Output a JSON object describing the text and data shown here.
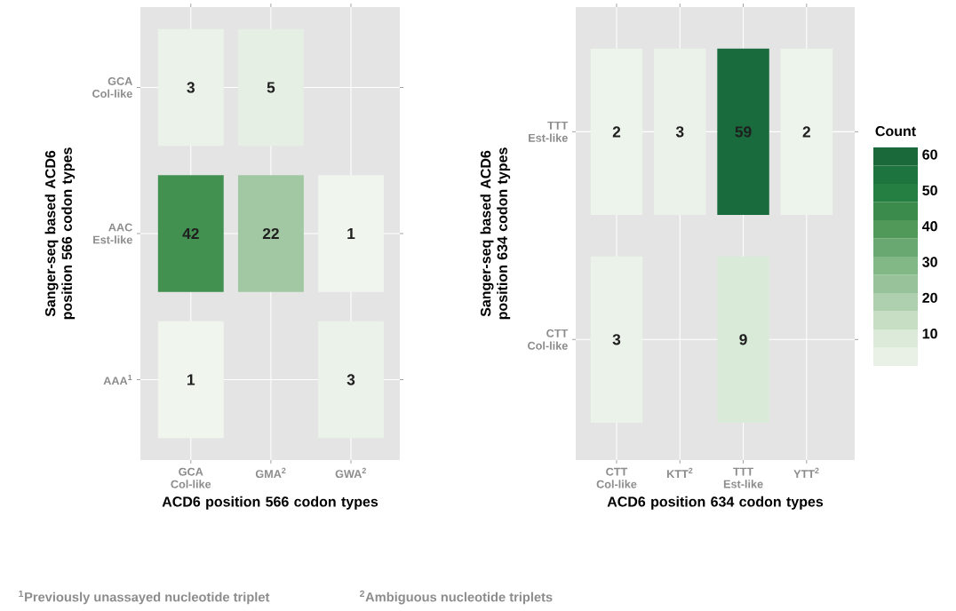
{
  "chart_data": [
    {
      "type": "heatmap",
      "xlabel": "ACD6 position 566 codon types",
      "ylabel": "Sanger-seq based ACD6 position 566 codon types",
      "categories": [
        "GCA Col-like",
        "GMA$^{2}$",
        "GWA$^{2}$"
      ],
      "y_categories": [
        "GCA Col-like",
        "AAC Est-like",
        "AAA$^{1}$"
      ],
      "cells": [
        [
          3,
          5,
          null
        ],
        [
          42,
          22,
          1
        ],
        [
          1,
          null,
          3
        ]
      ],
      "data_labels": true,
      "grid": true,
      "annotations": [
        "$^{1}$Previously unassayed nucleotide triplet",
        "$^{2}$Ambiguous nucleotide triplets"
      ]
    },
    {
      "type": "heatmap",
      "xlabel": "ACD6 position 634 codon types",
      "ylabel": "Sanger-seq based ACD6 position 634 codon types",
      "categories": [
        "CTT Col-like",
        "KTT$^{2}$",
        "TTT Est-like",
        "YTT$^{2}$"
      ],
      "y_categories": [
        "TTT Est-like",
        "CTT Col-like"
      ],
      "cells": [
        [
          2,
          3,
          59,
          2
        ],
        [
          3,
          null,
          9,
          null
        ]
      ],
      "clim": [
        1,
        62
      ],
      "cticks": [
        10,
        20,
        30,
        40,
        50,
        60
      ],
      "clabel": "Count",
      "data_labels": true,
      "grid": true
    }
  ]
}
